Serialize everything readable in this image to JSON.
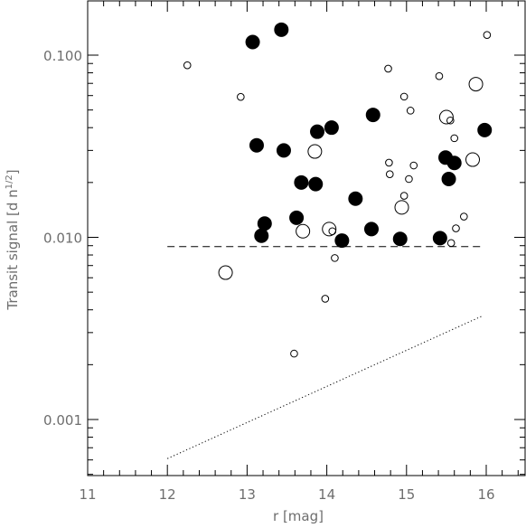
{
  "chart_data": {
    "type": "scatter",
    "xlabel": "r [mag]",
    "ylabel": "Transit signal [d n",
    "ylabel_sup": "1/2",
    "ylabel_end": "]",
    "xlim": [
      11,
      16.5
    ],
    "ylim": [
      0.0005,
      0.2
    ],
    "y_scale": "log",
    "x_ticks": [
      "11",
      "12",
      "13",
      "14",
      "15",
      "16"
    ],
    "y_ticks": [
      "0.001",
      "0.010",
      "0.100"
    ],
    "series": [
      {
        "marker": "filled-circle-large",
        "points": [
          [
            13.07,
            0.118
          ],
          [
            13.43,
            0.138
          ],
          [
            13.12,
            0.032
          ],
          [
            13.46,
            0.03
          ],
          [
            13.88,
            0.038
          ],
          [
            14.06,
            0.04
          ],
          [
            14.58,
            0.047
          ],
          [
            13.68,
            0.02
          ],
          [
            13.86,
            0.0196
          ],
          [
            14.36,
            0.0163
          ],
          [
            13.22,
            0.0119
          ],
          [
            13.18,
            0.0102
          ],
          [
            13.62,
            0.0128
          ],
          [
            14.19,
            0.0096
          ],
          [
            14.56,
            0.0111
          ],
          [
            14.92,
            0.0098
          ],
          [
            15.42,
            0.0099
          ],
          [
            15.49,
            0.0274
          ],
          [
            15.6,
            0.0256
          ],
          [
            15.53,
            0.0209
          ],
          [
            15.98,
            0.0388
          ]
        ]
      },
      {
        "marker": "open-circle-large",
        "points": [
          [
            12.73,
            0.0064
          ],
          [
            13.7,
            0.0108
          ],
          [
            13.85,
            0.0296
          ],
          [
            14.03,
            0.0111
          ],
          [
            14.94,
            0.0146
          ],
          [
            15.5,
            0.0457
          ],
          [
            15.87,
            0.0693
          ],
          [
            15.83,
            0.0267
          ]
        ]
      },
      {
        "marker": "open-circle-small",
        "points": [
          [
            12.25,
            0.088
          ],
          [
            12.92,
            0.059
          ],
          [
            13.59,
            0.0023
          ],
          [
            13.98,
            0.0046
          ],
          [
            14.07,
            0.0108
          ],
          [
            14.1,
            0.0077
          ],
          [
            14.77,
            0.0843
          ],
          [
            14.78,
            0.0257
          ],
          [
            14.79,
            0.0222
          ],
          [
            14.97,
            0.0592
          ],
          [
            14.97,
            0.0169
          ],
          [
            15.03,
            0.0209
          ],
          [
            15.05,
            0.0496
          ],
          [
            15.09,
            0.0248
          ],
          [
            15.41,
            0.0767
          ],
          [
            15.55,
            0.0438
          ],
          [
            15.56,
            0.0093
          ],
          [
            15.6,
            0.035
          ],
          [
            15.62,
            0.0112
          ],
          [
            15.72,
            0.013
          ],
          [
            16.01,
            0.1291
          ]
        ]
      }
    ],
    "lines": [
      {
        "style": "dashed",
        "points": [
          [
            12.0,
            0.0089
          ],
          [
            15.95,
            0.0089
          ]
        ]
      },
      {
        "style": "dotted",
        "points": [
          [
            12.0,
            0.00061
          ],
          [
            15.95,
            0.0037
          ]
        ]
      }
    ]
  }
}
